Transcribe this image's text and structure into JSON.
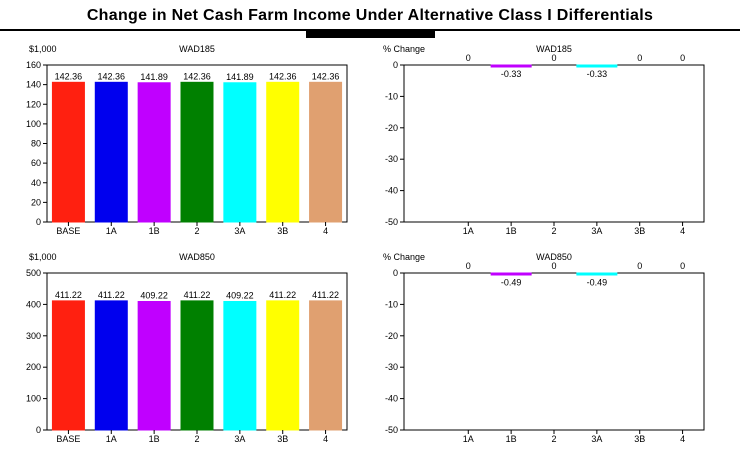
{
  "title": "Change in Net Cash Farm Income Under Alternative Class I Differentials",
  "colors": {
    "BASE": "#ff2010",
    "1A": "#0000ee",
    "1B": "#c000ff",
    "2": "#008000",
    "3A": "#00ffff",
    "3B": "#ffff00",
    "4": "#e0a070"
  },
  "chart_data": [
    {
      "type": "bar",
      "title": "WAD185",
      "ylabel": "$1,000",
      "categories": [
        "BASE",
        "1A",
        "1B",
        "2",
        "3A",
        "3B",
        "4"
      ],
      "values": [
        142.36,
        142.36,
        141.89,
        142.36,
        141.89,
        142.36,
        142.36
      ],
      "value_labels": [
        "142.36",
        "142.36",
        "141.89",
        "142.36",
        "141.89",
        "142.36",
        "142.36"
      ],
      "ylim": [
        0,
        160
      ],
      "yticks": [
        0,
        20,
        40,
        60,
        80,
        100,
        120,
        140,
        160
      ]
    },
    {
      "type": "bar",
      "title": "WAD185",
      "ylabel": "% Change",
      "categories": [
        "1A",
        "1B",
        "2",
        "3A",
        "3B",
        "4"
      ],
      "values": [
        0,
        -0.33,
        0,
        -0.33,
        0,
        0
      ],
      "value_labels": [
        "0",
        "-0.33",
        "0",
        "-0.33",
        "0",
        "0"
      ],
      "ylim": [
        -50,
        0
      ],
      "yticks": [
        0,
        -10,
        -20,
        -30,
        -40,
        -50
      ]
    },
    {
      "type": "bar",
      "title": "WAD850",
      "ylabel": "$1,000",
      "categories": [
        "BASE",
        "1A",
        "1B",
        "2",
        "3A",
        "3B",
        "4"
      ],
      "values": [
        411.22,
        411.22,
        409.22,
        411.22,
        409.22,
        411.22,
        411.22
      ],
      "value_labels": [
        "411.22",
        "411.22",
        "409.22",
        "411.22",
        "409.22",
        "411.22",
        "411.22"
      ],
      "ylim": [
        0,
        500
      ],
      "yticks": [
        0,
        100,
        200,
        300,
        400,
        500
      ]
    },
    {
      "type": "bar",
      "title": "WAD850",
      "ylabel": "% Change",
      "categories": [
        "1A",
        "1B",
        "2",
        "3A",
        "3B",
        "4"
      ],
      "values": [
        0,
        -0.49,
        0,
        -0.49,
        0,
        0
      ],
      "value_labels": [
        "0",
        "-0.49",
        "0",
        "-0.49",
        "0",
        "0"
      ],
      "ylim": [
        -50,
        0
      ],
      "yticks": [
        0,
        -10,
        -20,
        -30,
        -40,
        -50
      ]
    }
  ]
}
